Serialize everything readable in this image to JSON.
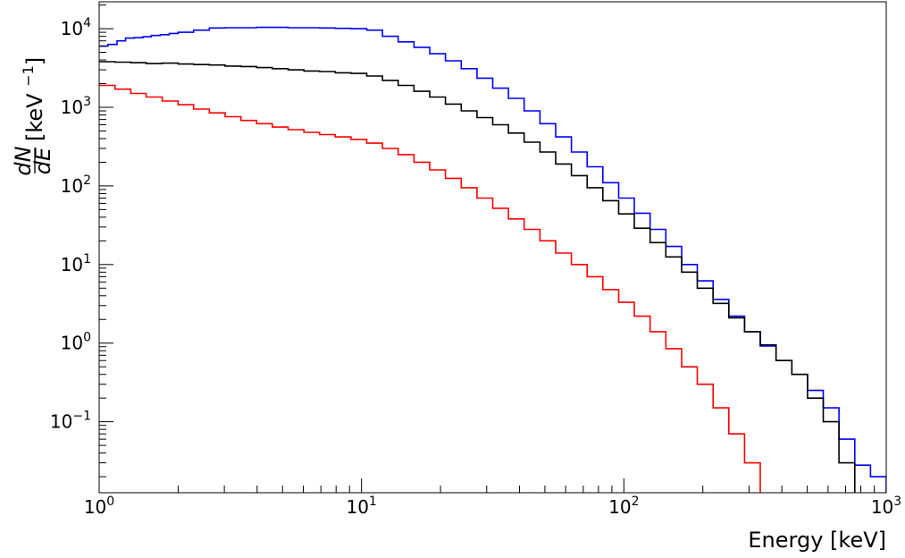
{
  "chart_data": {
    "type": "line",
    "style": "step-histogram",
    "xlabel": "Energy [keV]",
    "ylabel": "dN/dE [keV^-1]",
    "ylabel_parts": {
      "frac_num": "dN",
      "frac_den": "dE",
      "unit_open": "[keV",
      "unit_exp": "−1",
      "unit_close": "]"
    },
    "xscale": "log",
    "yscale": "log",
    "xlim": [
      1,
      1000
    ],
    "ylim": [
      0.0125,
      22000
    ],
    "x_ticks": [
      {
        "base": "10",
        "exp": "0"
      },
      {
        "base": "10",
        "exp": "1"
      },
      {
        "base": "10",
        "exp": "2"
      },
      {
        "base": "10",
        "exp": "3"
      }
    ],
    "y_ticks": [
      {
        "base": "10",
        "exp": "−1"
      },
      {
        "base": "10",
        "exp": "0"
      },
      {
        "base": "10",
        "exp": "1"
      },
      {
        "base": "10",
        "exp": "2"
      },
      {
        "base": "10",
        "exp": "3"
      },
      {
        "base": "10",
        "exp": "4"
      }
    ],
    "grid": false,
    "legend": "none",
    "series": [
      {
        "color": "#0000ff",
        "x": [
          1.0,
          1.08,
          1.17,
          1.26,
          1.36,
          1.47,
          1.58,
          1.71,
          1.85,
          2.0,
          2.29,
          2.63,
          3.02,
          3.47,
          3.98,
          4.57,
          5.25,
          6.03,
          6.92,
          7.94,
          9.12,
          10.47,
          12.02,
          13.8,
          15.85,
          18.2,
          20.89,
          23.99,
          27.54,
          31.62,
          36.31,
          41.69,
          47.86,
          54.95,
          63.1,
          72.44,
          83.18,
          95.5,
          109.6,
          125.9,
          144.5,
          166.0,
          190.5,
          218.8,
          251.2,
          288.4,
          331.1,
          380.2,
          436.5,
          501.2,
          575.4,
          660.7,
          758.6,
          870.9
        ],
        "y": [
          6000,
          6300,
          7000,
          7600,
          7700,
          7900,
          8200,
          8400,
          8700,
          9000,
          9600,
          10200,
          10300,
          10300,
          10400,
          10400,
          10300,
          10300,
          10200,
          10100,
          10000,
          9600,
          8000,
          6800,
          5800,
          4800,
          3900,
          3100,
          2350,
          1750,
          1300,
          900,
          620,
          420,
          270,
          175,
          110,
          70,
          45,
          28,
          17,
          10,
          6.2,
          3.6,
          2.2,
          1.4,
          0.92,
          0.6,
          0.4,
          0.25,
          0.15,
          0.06,
          0.028,
          0.02
        ]
      },
      {
        "color": "#000000",
        "x": [
          1.0,
          1.15,
          1.32,
          1.51,
          1.74,
          2.0,
          2.29,
          2.63,
          3.02,
          3.47,
          3.98,
          4.57,
          5.25,
          6.03,
          6.92,
          7.94,
          9.12,
          10.47,
          12.02,
          13.8,
          15.85,
          18.2,
          20.89,
          23.99,
          27.54,
          31.62,
          36.31,
          41.69,
          47.86,
          54.95,
          63.1,
          72.44,
          83.18,
          95.5,
          109.6,
          125.9,
          144.5,
          166.0,
          190.5,
          218.8,
          251.2,
          288.4,
          331.1,
          380.2,
          436.5,
          501.2,
          575.4,
          660.7
        ],
        "y": [
          3800,
          3750,
          3700,
          3600,
          3650,
          3550,
          3500,
          3450,
          3350,
          3300,
          3200,
          3100,
          3000,
          2900,
          2850,
          2750,
          2700,
          2500,
          2200,
          1900,
          1600,
          1350,
          1100,
          900,
          740,
          600,
          470,
          360,
          270,
          190,
          135,
          95,
          65,
          44,
          29,
          19,
          12.5,
          8,
          5,
          3.2,
          2.1,
          1.4,
          0.95,
          0.6,
          0.4,
          0.2,
          0.1,
          0.03
        ]
      },
      {
        "color": "#ff0000",
        "x": [
          1.0,
          1.15,
          1.32,
          1.51,
          1.74,
          2.0,
          2.29,
          2.63,
          3.02,
          3.47,
          3.98,
          4.57,
          5.25,
          6.03,
          6.92,
          7.94,
          9.12,
          10.47,
          12.02,
          13.8,
          15.85,
          18.2,
          20.89,
          23.99,
          27.54,
          31.62,
          36.31,
          41.69,
          47.86,
          54.95,
          63.1,
          72.44,
          83.18,
          95.5,
          109.6,
          125.9,
          144.5,
          166.0,
          190.5,
          218.8,
          251.2,
          288.4
        ],
        "y": [
          1900,
          1700,
          1500,
          1350,
          1200,
          1080,
          950,
          850,
          760,
          680,
          620,
          560,
          520,
          480,
          450,
          420,
          390,
          350,
          300,
          250,
          200,
          160,
          125,
          95,
          70,
          52,
          38,
          28,
          20,
          14,
          10,
          7,
          4.8,
          3.3,
          2.2,
          1.4,
          0.85,
          0.5,
          0.3,
          0.15,
          0.07,
          0.03
        ]
      }
    ]
  }
}
